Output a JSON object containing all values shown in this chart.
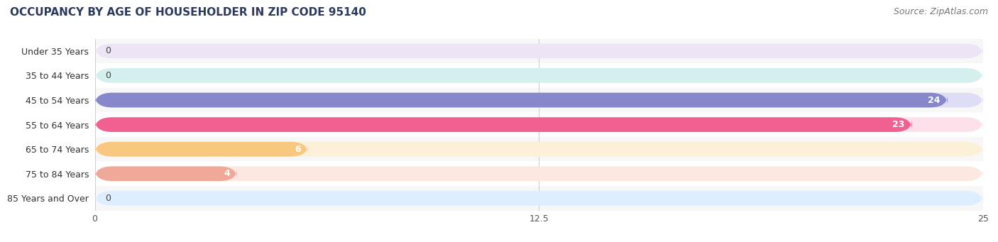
{
  "title": "OCCUPANCY BY AGE OF HOUSEHOLDER IN ZIP CODE 95140",
  "source": "Source: ZipAtlas.com",
  "categories": [
    "Under 35 Years",
    "35 to 44 Years",
    "45 to 54 Years",
    "55 to 64 Years",
    "65 to 74 Years",
    "75 to 84 Years",
    "85 Years and Over"
  ],
  "values": [
    0,
    0,
    24,
    23,
    6,
    4,
    0
  ],
  "bar_colors": [
    "#c9a8d4",
    "#7ececa",
    "#8787cc",
    "#f06090",
    "#f9c880",
    "#f0a898",
    "#a8c8f0"
  ],
  "bar_bg_colors": [
    "#ede4f5",
    "#d5efef",
    "#ddddf5",
    "#fde0ea",
    "#fdf0d8",
    "#fce8e0",
    "#dceeff"
  ],
  "xlim": [
    0,
    25
  ],
  "xticks": [
    0,
    12.5,
    25
  ],
  "title_fontsize": 11,
  "source_fontsize": 9,
  "label_fontsize": 9,
  "value_fontsize": 9,
  "background_color": "#ffffff",
  "bar_height": 0.6,
  "title_color": "#2d3a5e",
  "source_color": "#777777",
  "row_bg_even": "#f7f7f7",
  "row_bg_odd": "#ffffff"
}
